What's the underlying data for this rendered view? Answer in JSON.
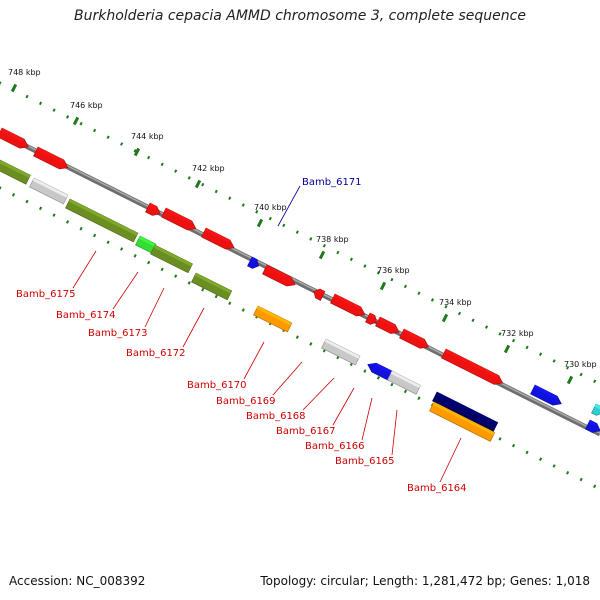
{
  "title": "Burkholderia cepacia AMMD chromosome 3, complete sequence",
  "footer": {
    "accession": "Accession: NC_008392",
    "topology": "Topology: circular; Length: 1,281,472 bp; Genes: 1,018"
  },
  "colors": {
    "backbone": "#8a8a8a",
    "tick": "#1d7a1d",
    "label_red": "#cc0000",
    "label_blue": "#000099",
    "red": "#ee1111",
    "grey": "#c8c8c8",
    "olive": "#6b8e23",
    "green": "#33dd33",
    "orange": "#ff9900",
    "blue": "#1111dd",
    "navy": "#000066",
    "cyan": "#33cccc"
  },
  "scale_ticks": [
    {
      "label": "748 kbp"
    },
    {
      "label": "746 kbp"
    },
    {
      "label": "744 kbp"
    },
    {
      "label": "742 kbp"
    },
    {
      "label": "740 kbp"
    },
    {
      "label": "738 kbp"
    },
    {
      "label": "736 kbp"
    },
    {
      "label": "734 kbp"
    },
    {
      "label": "732 kbp"
    },
    {
      "label": "730 kbp"
    }
  ],
  "genes": [
    {
      "label": "Bamb_6175",
      "color_key": "label_red"
    },
    {
      "label": "Bamb_6174",
      "color_key": "label_red"
    },
    {
      "label": "Bamb_6173",
      "color_key": "label_red"
    },
    {
      "label": "Bamb_6172",
      "color_key": "label_red"
    },
    {
      "label": "Bamb_6171",
      "color_key": "label_blue"
    },
    {
      "label": "Bamb_6170",
      "color_key": "label_red"
    },
    {
      "label": "Bamb_6169",
      "color_key": "label_red"
    },
    {
      "label": "Bamb_6168",
      "color_key": "label_red"
    },
    {
      "label": "Bamb_6167",
      "color_key": "label_red"
    },
    {
      "label": "Bamb_6166",
      "color_key": "label_red"
    },
    {
      "label": "Bamb_6165",
      "color_key": "label_red"
    },
    {
      "label": "Bamb_6164",
      "color_key": "label_red"
    }
  ]
}
